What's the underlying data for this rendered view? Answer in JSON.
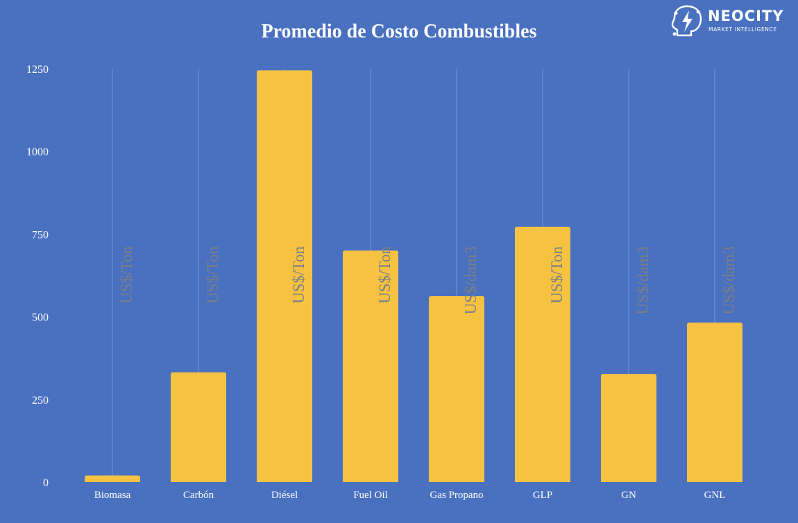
{
  "logo": {
    "name": "NEOCITY",
    "tagline": "MARKET INTELLIGENCE",
    "icon": "brain-lightning-icon"
  },
  "colors": {
    "background": "#4a71c0",
    "bar": "#f5c242",
    "unit_label": "#7d7f86",
    "text": "#ffffff"
  },
  "chart_data": {
    "type": "bar",
    "title": "Promedio de Costo Combustibles",
    "xlabel": "",
    "ylabel": "",
    "ylim": [
      0,
      1250
    ],
    "yticks": [
      0,
      250,
      500,
      750,
      1000,
      1250
    ],
    "grid": "vertical",
    "categories": [
      "Biomasa",
      "Carbón",
      "Diésel",
      "Fuel Oil",
      "Gas Propano",
      "GLP",
      "GN",
      "GNL"
    ],
    "values": [
      20,
      332,
      1245,
      700,
      562,
      772,
      327,
      482
    ],
    "units": [
      "US$/Ton",
      "US$/Ton",
      "US$/Ton",
      "US$/Ton",
      "US$/dam3",
      "US$/Ton",
      "US$/dam3",
      "US$/dam3"
    ]
  }
}
